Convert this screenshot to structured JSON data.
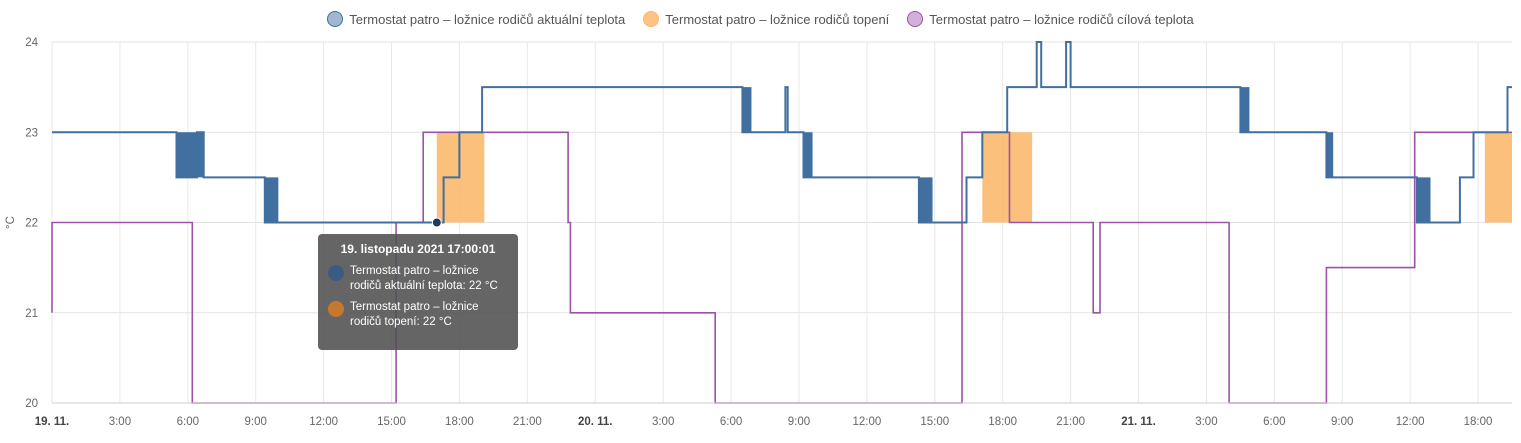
{
  "legend": {
    "items": [
      {
        "label": "Termostat patro – ložnice rodičů aktuální teplota",
        "color": "#416f9f"
      },
      {
        "label": "Termostat patro – ložnice rodičů topení",
        "color": "#fbb96d"
      },
      {
        "label": "Termostat patro – ložnice rodičů cílová teplota",
        "color": "#9b52a8"
      }
    ]
  },
  "tooltip": {
    "title": "19. listopadu 2021 17:00:01",
    "rows": [
      {
        "text": "Termostat patro – ložnice rodičů aktuální teplota: 22 °C",
        "color": "#3b5b85"
      },
      {
        "text": "Termostat patro – ložnice rodičů topení: 22 °C",
        "color": "#c5792f"
      }
    ]
  },
  "chart_data": {
    "type": "line",
    "ylabel": "°C",
    "ylim": [
      20,
      24
    ],
    "yticks": [
      20,
      21,
      22,
      23,
      24
    ],
    "xlim_hours": [
      0,
      64.5
    ],
    "xticks": [
      {
        "h": 0,
        "label": "19. 11.",
        "major": true
      },
      {
        "h": 3,
        "label": "3:00"
      },
      {
        "h": 6,
        "label": "6:00"
      },
      {
        "h": 9,
        "label": "9:00"
      },
      {
        "h": 12,
        "label": "12:00"
      },
      {
        "h": 15,
        "label": "15:00"
      },
      {
        "h": 18,
        "label": "18:00"
      },
      {
        "h": 21,
        "label": "21:00"
      },
      {
        "h": 24,
        "label": "20. 11.",
        "major": true
      },
      {
        "h": 27,
        "label": "3:00"
      },
      {
        "h": 30,
        "label": "6:00"
      },
      {
        "h": 33,
        "label": "9:00"
      },
      {
        "h": 36,
        "label": "12:00"
      },
      {
        "h": 39,
        "label": "15:00"
      },
      {
        "h": 42,
        "label": "18:00"
      },
      {
        "h": 45,
        "label": "21:00"
      },
      {
        "h": 48,
        "label": "21. 11.",
        "major": true
      },
      {
        "h": 51,
        "label": "3:00"
      },
      {
        "h": 54,
        "label": "6:00"
      },
      {
        "h": 57,
        "label": "9:00"
      },
      {
        "h": 60,
        "label": "12:00"
      },
      {
        "h": 63,
        "label": "18:00"
      }
    ],
    "grid": true,
    "legend": "top",
    "series": [
      {
        "name": "Termostat patro – ložnice rodičů aktuální teplota",
        "style": "step-line",
        "color": "#416f9f",
        "points": [
          [
            0,
            23
          ],
          [
            5.5,
            23
          ],
          [
            5.5,
            22.5
          ],
          [
            6.4,
            22.5
          ],
          [
            6.4,
            23
          ],
          [
            6.7,
            23
          ],
          [
            6.7,
            22.5
          ],
          [
            9.4,
            22.5
          ],
          [
            9.4,
            22
          ],
          [
            17.0,
            22
          ],
          [
            17.3,
            22
          ],
          [
            17.3,
            22.5
          ],
          [
            18.0,
            22.5
          ],
          [
            18.0,
            23
          ],
          [
            19.0,
            23
          ],
          [
            19.0,
            23.5
          ],
          [
            30.5,
            23.5
          ],
          [
            30.5,
            23
          ],
          [
            32.4,
            23
          ],
          [
            32.4,
            23.5
          ],
          [
            32.5,
            23.5
          ],
          [
            32.5,
            23
          ],
          [
            33.2,
            23
          ],
          [
            33.2,
            22.5
          ],
          [
            38.3,
            22.5
          ],
          [
            38.3,
            22
          ],
          [
            40.4,
            22
          ],
          [
            40.4,
            22.5
          ],
          [
            41.1,
            22.5
          ],
          [
            41.1,
            23
          ],
          [
            42.2,
            23
          ],
          [
            42.2,
            23.5
          ],
          [
            43.5,
            23.5
          ],
          [
            43.5,
            24
          ],
          [
            43.7,
            24
          ],
          [
            43.7,
            23.5
          ],
          [
            44.8,
            23.5
          ],
          [
            44.8,
            24
          ],
          [
            45.0,
            24
          ],
          [
            45.0,
            23.5
          ],
          [
            52.5,
            23.5
          ],
          [
            52.5,
            23
          ],
          [
            56.3,
            23
          ],
          [
            56.3,
            22.5
          ],
          [
            60.3,
            22.5
          ],
          [
            60.3,
            22
          ],
          [
            62.2,
            22
          ],
          [
            62.2,
            22.5
          ],
          [
            62.8,
            22.5
          ],
          [
            62.8,
            23
          ],
          [
            64.3,
            23
          ],
          [
            64.3,
            23.5
          ],
          [
            64.5,
            23.5
          ]
        ],
        "noise_bands": [
          [
            5.5,
            6.4,
            22.5,
            23
          ],
          [
            6.4,
            6.7,
            22.5,
            23
          ],
          [
            9.4,
            10.0,
            22,
            22.5
          ],
          [
            30.5,
            30.9,
            23,
            23.5
          ],
          [
            33.2,
            33.6,
            22.5,
            23
          ],
          [
            38.3,
            38.9,
            22,
            22.5
          ],
          [
            52.5,
            52.9,
            23,
            23.5
          ],
          [
            56.3,
            56.6,
            22.5,
            23
          ],
          [
            60.3,
            60.9,
            22,
            22.5
          ]
        ]
      },
      {
        "name": "Termostat patro – ložnice rodičů topení",
        "style": "area",
        "color": "#fbb96d",
        "blocks": [
          [
            17.0,
            19.1,
            22,
            23
          ],
          [
            41.1,
            43.3,
            22,
            23
          ],
          [
            63.3,
            64.5,
            22,
            23
          ]
        ]
      },
      {
        "name": "Termostat patro – ložnice rodičů cílová teplota",
        "style": "step-line",
        "color": "#9b52a8",
        "points": [
          [
            0,
            21
          ],
          [
            0,
            22
          ],
          [
            6.2,
            22
          ],
          [
            6.2,
            20
          ],
          [
            15.2,
            20
          ],
          [
            15.2,
            22
          ],
          [
            16.4,
            22
          ],
          [
            16.4,
            23
          ],
          [
            22.8,
            23
          ],
          [
            22.8,
            22
          ],
          [
            22.9,
            22
          ],
          [
            22.9,
            21
          ],
          [
            29.3,
            21
          ],
          [
            29.3,
            20
          ],
          [
            40.2,
            20
          ],
          [
            40.2,
            23
          ],
          [
            42.3,
            23
          ],
          [
            42.3,
            22
          ],
          [
            46.0,
            22
          ],
          [
            46.0,
            21
          ],
          [
            46.3,
            21
          ],
          [
            46.3,
            22
          ],
          [
            52.0,
            22
          ],
          [
            52.0,
            20
          ],
          [
            56.3,
            20
          ],
          [
            56.3,
            21.5
          ],
          [
            60.2,
            21.5
          ],
          [
            60.2,
            23
          ],
          [
            64.5,
            23
          ]
        ]
      }
    ]
  }
}
